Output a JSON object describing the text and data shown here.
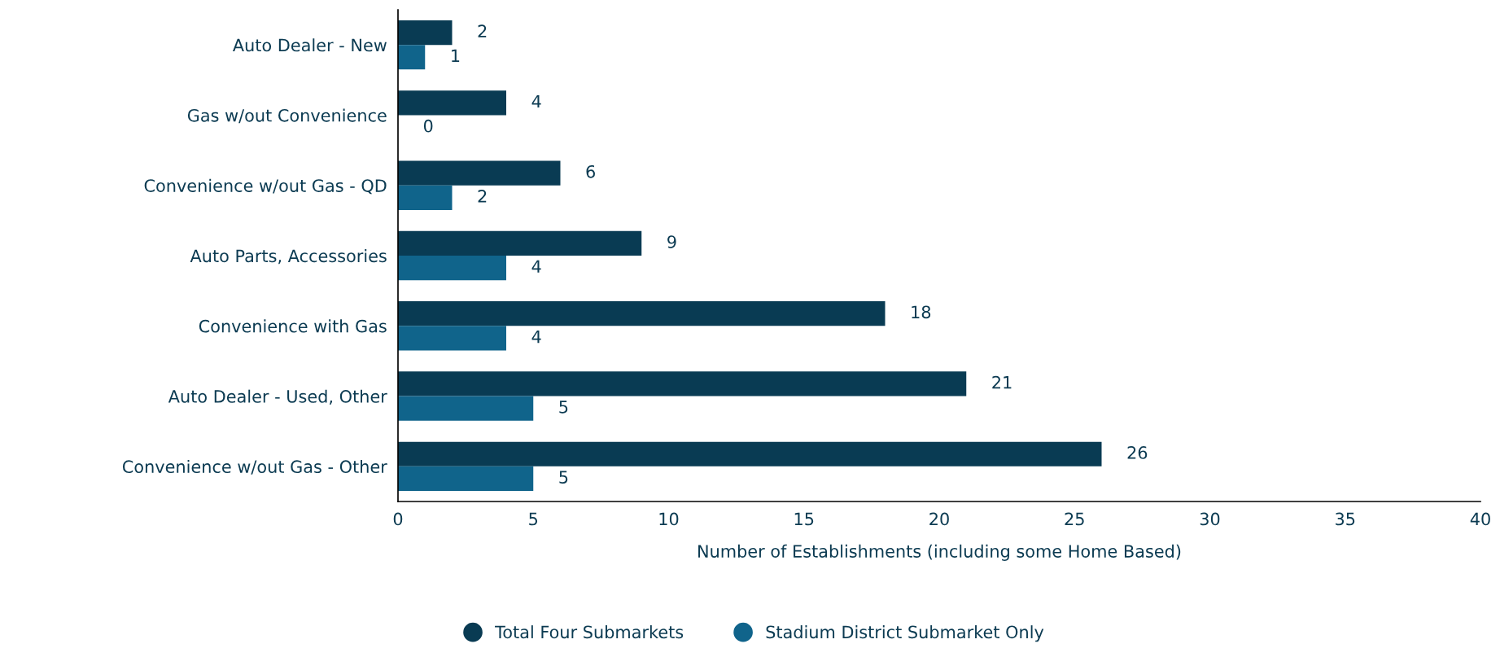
{
  "chart_data": {
    "type": "bar",
    "orientation": "horizontal",
    "xlabel": "Number of Establishments (including some Home Based)",
    "categories": [
      "Auto Dealer - New",
      "Gas w/out Convenience",
      "Convenience w/out Gas - QD",
      "Auto Parts, Accessories",
      "Convenience with Gas",
      "Auto Dealer - Used, Other",
      "Convenience w/out Gas - Other"
    ],
    "series": [
      {
        "name": "Total Four Submarkets",
        "color": "#093b53",
        "values": [
          2,
          4,
          6,
          9,
          18,
          21,
          26
        ]
      },
      {
        "name": "Stadium District Submarket Only",
        "color": "#10648b",
        "values": [
          1,
          0,
          2,
          4,
          4,
          5,
          5
        ]
      }
    ],
    "xlim": [
      0,
      40
    ],
    "xticks": [
      0,
      5,
      10,
      15,
      20,
      25,
      30,
      35,
      40
    ],
    "data_labels": true,
    "grid": false,
    "legend": "bottom",
    "marker": "circle"
  }
}
